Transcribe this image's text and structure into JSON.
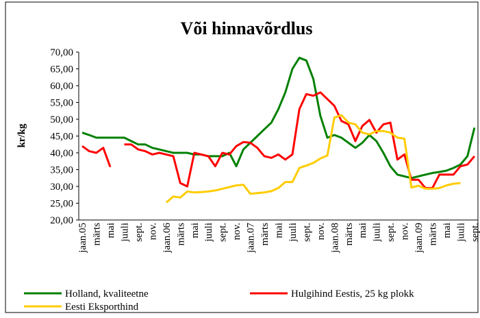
{
  "chart_data": {
    "type": "line",
    "title": "Või hinnavõrdlus",
    "y_label": "kr/kg",
    "categories": [
      "jaan.05",
      null,
      "märts",
      null,
      "mai",
      null,
      "juuli",
      null,
      "sept.",
      null,
      "nov.",
      null,
      "jaan.06",
      null,
      "märts",
      null,
      "mai",
      null,
      "juuli",
      null,
      "sept.",
      null,
      "nov.",
      null,
      "jaan.07",
      null,
      "märts",
      null,
      "mai",
      null,
      "juuli",
      null,
      "sept.",
      null,
      "nov.",
      null,
      "jaan.08",
      null,
      "märts",
      null,
      "mai",
      null,
      "juuli",
      null,
      "sept.",
      null,
      "nov.",
      null,
      "jaan.09",
      null,
      "märts",
      null,
      "mai",
      null,
      "juuli",
      null,
      "sept."
    ],
    "series": [
      {
        "name": "Holland, kvaliteetne",
        "color": "#008000",
        "values": [
          46,
          45.3,
          44.5,
          44.5,
          44.5,
          44.5,
          44.5,
          43.5,
          42.5,
          42.5,
          41.5,
          41,
          40.5,
          40,
          40,
          40,
          39.5,
          39.5,
          39,
          39,
          39,
          40,
          36,
          41,
          43,
          45,
          47,
          49,
          53,
          58,
          65,
          68.3,
          67.5,
          62,
          51,
          44.5,
          45.3,
          44.5,
          43,
          41.5,
          43,
          45.3,
          43.5,
          40,
          36,
          33.5,
          33,
          32.5,
          33,
          33.5,
          34,
          34.3,
          34.7,
          35.5,
          36.5,
          39,
          47.5
        ]
      },
      {
        "name": "Hulgihind Eestis, 25 kg plokk",
        "color": "#ff0000",
        "values": [
          42,
          40.5,
          40,
          41.5,
          35.8,
          null,
          42.5,
          42.5,
          41,
          40.5,
          39.5,
          40,
          39.5,
          39,
          31,
          30,
          40,
          39.5,
          39,
          36,
          40,
          39.5,
          42,
          43.2,
          43,
          41.5,
          39,
          38.5,
          39.5,
          38,
          39.5,
          53,
          57.5,
          57,
          58,
          56,
          54,
          49.5,
          48.5,
          43.5,
          48,
          49.8,
          46,
          48.5,
          49,
          38,
          39.5,
          32,
          32,
          29.5,
          29.5,
          33.5,
          33.5,
          33.5,
          36,
          36.5,
          39
        ]
      },
      {
        "name": "Eesti Eksporthind",
        "color": "#ffcc00",
        "values": [
          null,
          null,
          null,
          null,
          null,
          null,
          null,
          null,
          null,
          null,
          null,
          null,
          25.2,
          27,
          26.7,
          28.5,
          28.2,
          28.3,
          28.5,
          28.8,
          29.3,
          29.8,
          30.3,
          30.5,
          27.8,
          28,
          28.2,
          28.6,
          29.5,
          31.3,
          31.3,
          35.5,
          36.2,
          37,
          38.3,
          39.2,
          50.5,
          51.2,
          49,
          48.5,
          46,
          45.5,
          46.5,
          46.5,
          46,
          44.5,
          44.2,
          29.7,
          30.2,
          29.3,
          29.3,
          29.5,
          30.3,
          30.8,
          31,
          null,
          null
        ]
      }
    ],
    "ylim": [
      20,
      70
    ],
    "yticks": [
      {
        "value": 20,
        "label": "20,00"
      },
      {
        "value": 25,
        "label": "25,00"
      },
      {
        "value": 30,
        "label": "30,00"
      },
      {
        "value": 35,
        "label": "35,00"
      },
      {
        "value": 40,
        "label": "40,00"
      },
      {
        "value": 45,
        "label": "45,00"
      },
      {
        "value": 50,
        "label": "50,00"
      },
      {
        "value": 55,
        "label": "55,00"
      },
      {
        "value": 60,
        "label": "60,00"
      },
      {
        "value": 65,
        "label": "65,00"
      },
      {
        "value": 70,
        "label": "70,00"
      }
    ]
  }
}
